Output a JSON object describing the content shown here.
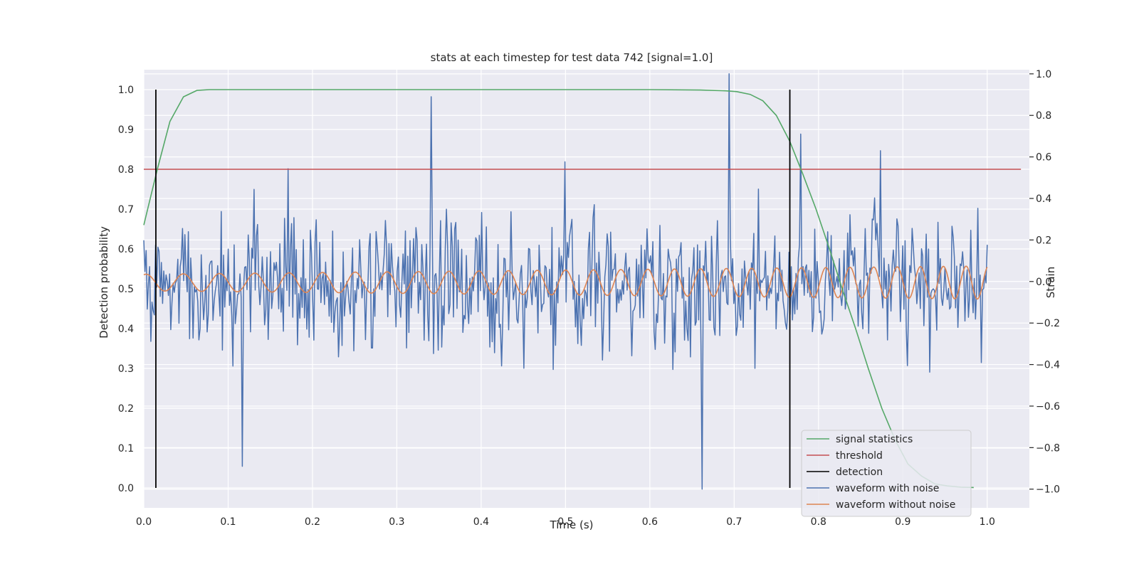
{
  "chart_data": {
    "type": "line",
    "title": "stats at each timestep for test data 742 [signal=1.0]",
    "xlabel": "Time (s)",
    "ylabel": "Detection probability",
    "y2label": "Strain",
    "xlim": [
      0.0,
      1.05
    ],
    "ylim": [
      -0.05,
      1.05
    ],
    "y2lim": [
      -1.09,
      1.02
    ],
    "xticks": [
      0.0,
      0.1,
      0.2,
      0.3,
      0.4,
      0.5,
      0.6,
      0.7,
      0.8,
      0.9,
      1.0
    ],
    "xtick_labels": [
      "0.0",
      "0.1",
      "0.2",
      "0.3",
      "0.4",
      "0.5",
      "0.6",
      "0.7",
      "0.8",
      "0.9",
      "1.0"
    ],
    "yticks": [
      0.0,
      0.1,
      0.2,
      0.3,
      0.4,
      0.5,
      0.6,
      0.7,
      0.8,
      0.9,
      1.0
    ],
    "ytick_labels": [
      "0.0",
      "0.1",
      "0.2",
      "0.3",
      "0.4",
      "0.5",
      "0.6",
      "0.7",
      "0.8",
      "0.9",
      "1.0"
    ],
    "y2ticks": [
      -1.0,
      -0.8,
      -0.6,
      -0.4,
      -0.2,
      0.0,
      0.2,
      0.4,
      0.6,
      0.8,
      1.0
    ],
    "y2tick_labels": [
      "−1.0",
      "−0.8",
      "−0.6",
      "−0.4",
      "−0.2",
      "0.0",
      "0.2",
      "0.4",
      "0.6",
      "0.8",
      "1.0"
    ],
    "grid": true,
    "legend_position": "lower-right",
    "signal_statistics": {
      "name": "signal statistics",
      "color": "#55a868",
      "x": [
        0.0,
        0.016,
        0.031,
        0.047,
        0.063,
        0.078,
        0.1,
        0.2,
        0.3,
        0.4,
        0.5,
        0.6,
        0.66,
        0.69,
        0.703,
        0.719,
        0.734,
        0.75,
        0.766,
        0.781,
        0.797,
        0.813,
        0.828,
        0.844,
        0.859,
        0.875,
        0.891,
        0.906,
        0.922,
        0.938,
        0.953,
        0.969,
        0.984
      ],
      "values": [
        0.66,
        0.8,
        0.92,
        0.982,
        0.998,
        1.0,
        1.0,
        1.0,
        1.0,
        1.0,
        1.0,
        1.0,
        0.999,
        0.997,
        0.995,
        0.988,
        0.972,
        0.935,
        0.87,
        0.79,
        0.7,
        0.6,
        0.5,
        0.4,
        0.3,
        0.2,
        0.12,
        0.06,
        0.03,
        0.01,
        0.005,
        0.002,
        0.001
      ]
    },
    "threshold": {
      "name": "threshold",
      "color": "#c44e52",
      "value": 0.8,
      "x_range": [
        0.0,
        1.04
      ]
    },
    "detection": {
      "name": "detection",
      "color": "#000000",
      "x": [
        0.0143,
        0.766
      ],
      "y_range": [
        0.0,
        1.0
      ]
    },
    "waveform_with_noise": {
      "name": "waveform with noise",
      "color": "#4c72b0",
      "axis": "strain",
      "x_range": [
        0.0,
        1.0
      ],
      "n_points": 720,
      "typical_range": [
        -0.6,
        0.6
      ],
      "peaks": [
        {
          "x": 0.117,
          "y": -0.89
        },
        {
          "x": 0.341,
          "y": 0.89
        },
        {
          "x": 0.662,
          "y": -1.0
        },
        {
          "x": 0.694,
          "y": 1.0
        },
        {
          "x": 0.779,
          "y": 0.71
        },
        {
          "x": 0.874,
          "y": 0.63
        }
      ]
    },
    "waveform_without_noise": {
      "name": "waveform without noise",
      "color": "#dd8452",
      "axis": "strain",
      "x_range": [
        0.0,
        1.0
      ],
      "cycles": 30,
      "amplitude_start": 0.04,
      "amplitude_end": 0.08,
      "offset": -0.005
    }
  }
}
